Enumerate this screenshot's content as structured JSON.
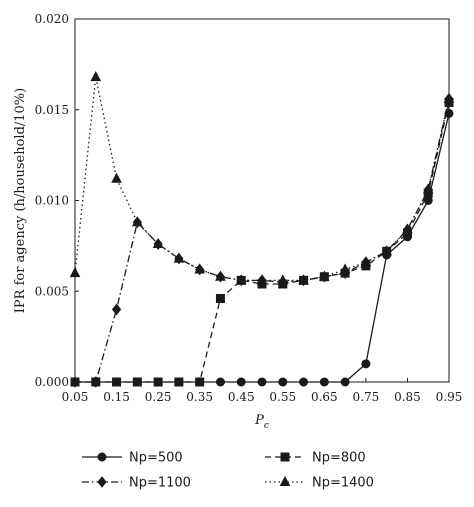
{
  "chart_data": {
    "type": "line",
    "title": "",
    "xlabel": "P",
    "xlabel_sub": "c",
    "ylabel": "IPR for agency (h/household/10%)",
    "xlim": [
      0.05,
      0.95
    ],
    "ylim": [
      0,
      0.02
    ],
    "x_ticks": [
      "0.05",
      "0.15",
      "0.25",
      "0.35",
      "0.45",
      "0.55",
      "0.65",
      "0.75",
      "0.85",
      "0.95"
    ],
    "y_ticks": [
      "0.000",
      "0.005",
      "0.010",
      "0.015",
      "0.020"
    ],
    "grid": false,
    "legend_position": "bottom",
    "x": [
      0.05,
      0.1,
      0.15,
      0.2,
      0.25,
      0.3,
      0.35,
      0.4,
      0.45,
      0.5,
      0.55,
      0.6,
      0.65,
      0.7,
      0.75,
      0.8,
      0.85,
      0.9,
      0.95
    ],
    "series": [
      {
        "name": "Np=500",
        "marker": "circle",
        "dash": "solid",
        "values": [
          0,
          0,
          0,
          0,
          0,
          0,
          0,
          0,
          0,
          0,
          0,
          0,
          0,
          0,
          0.001,
          0.007,
          0.008,
          0.01,
          0.0148
        ]
      },
      {
        "name": "Np=800",
        "marker": "square",
        "dash": "dashed",
        "values": [
          0,
          0,
          0,
          0,
          0,
          0,
          0,
          0.0046,
          0.0056,
          0.0054,
          0.0054,
          0.0056,
          0.0058,
          0.006,
          0.0064,
          0.0072,
          0.0082,
          0.0104,
          0.0154
        ]
      },
      {
        "name": "Np=1100",
        "marker": "diamond",
        "dash": "dashdot",
        "values": [
          0,
          0,
          0.004,
          0.0088,
          0.0076,
          0.0068,
          0.0062,
          0.0058,
          0.0056,
          0.0056,
          0.0055,
          0.0056,
          0.0058,
          0.006,
          0.0066,
          0.0072,
          0.0084,
          0.0106,
          0.0156
        ]
      },
      {
        "name": "Np=1400",
        "marker": "triangle",
        "dash": "dotted",
        "values": [
          0.006,
          0.0168,
          0.0112,
          0.0088,
          0.0076,
          0.0068,
          0.0062,
          0.0058,
          0.0056,
          0.0056,
          0.0056,
          0.0056,
          0.0058,
          0.0062,
          0.0066,
          0.0072,
          0.0084,
          0.0106,
          0.0156
        ]
      }
    ]
  }
}
